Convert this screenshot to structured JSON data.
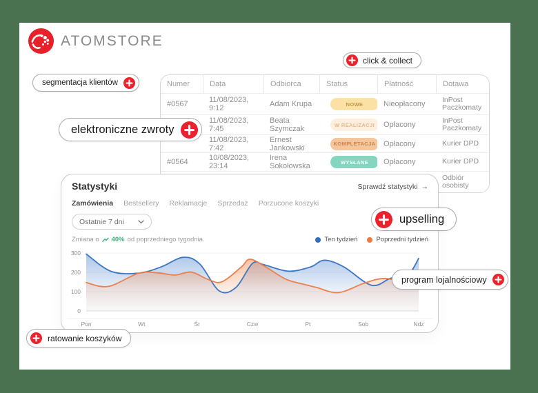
{
  "colors": {
    "frame": "#4a7150",
    "accent_red": "#e8232d",
    "change_green": "#3bb27a"
  },
  "logo": {
    "text": "ATOMSTORE"
  },
  "feature_pills": [
    {
      "label": "click & collect"
    },
    {
      "label": "segmentacja klientów"
    },
    {
      "label": "elektroniczne zwroty"
    },
    {
      "label": "upselling"
    },
    {
      "label": "program lojalnościowy"
    },
    {
      "label": "ratowanie koszyków"
    }
  ],
  "orders_table": {
    "columns": [
      "Numer",
      "Data",
      "Odbiorca",
      "Status",
      "Płatność",
      "Dotawa"
    ],
    "rows": [
      {
        "numer": "#0567",
        "data": "11/08/2023, 9:12",
        "odbiorca": "Adam Krupa",
        "status": "NOWE",
        "platnosc": "Nieopłacony",
        "dostawa": "InPost Paczkomaty"
      },
      {
        "numer": "",
        "data": "11/08/2023, 7:45",
        "odbiorca": "Beata Szymczak",
        "status": "W REALIZACJI",
        "platnosc": "Opłacony",
        "dostawa": "InPost Paczkomaty"
      },
      {
        "numer": "",
        "data": "11/08/2023, 7:42",
        "odbiorca": "Ernest Jankowski",
        "status": "KOMPLETACJA",
        "platnosc": "Opłacony",
        "dostawa": "Kurier DPD"
      },
      {
        "numer": "#0564",
        "data": "10/08/2023, 23:14",
        "odbiorca": "Irena Sokołowska",
        "status": "WYSŁANE",
        "platnosc": "Opłacony",
        "dostawa": "Kurier DPD"
      },
      {
        "numer": "",
        "data": "",
        "odbiorca": "",
        "status": "",
        "platnosc": "",
        "dostawa": "Odbiór osobisty"
      }
    ]
  },
  "stats_panel": {
    "title": "Statystyki",
    "link": "Sprawdź statystyki",
    "link_arrow": "→",
    "tabs": [
      {
        "label": "Zamówienia",
        "active": true
      },
      {
        "label": "Bestsellery",
        "active": false
      },
      {
        "label": "Reklamacje",
        "active": false
      },
      {
        "label": "Sprzedaż",
        "active": false
      },
      {
        "label": "Porzucone koszyki",
        "active": false
      }
    ],
    "range_select": "Ostatnie 7 dni",
    "change_prefix": "Zmiana o",
    "change_value": "40%",
    "change_suffix": "od poprzedniego tygodnia.",
    "legend": [
      {
        "label": "Ten tydzień",
        "color": "#2e6fbe"
      },
      {
        "label": "Poprzedni tydzień",
        "color": "#f07a3e"
      }
    ]
  },
  "chart_data": {
    "type": "area",
    "title": "",
    "xlabel": "",
    "ylabel": "",
    "categories": [
      "Pon",
      "Wt",
      "Śr",
      "Czw",
      "Pt",
      "Sob",
      "Ndz"
    ],
    "yticks": [
      0,
      100,
      200,
      300
    ],
    "ylim": [
      0,
      300
    ],
    "grid": true,
    "legend_position": "top-right",
    "series": [
      {
        "name": "Ten tydzień",
        "color": "#3b76c4",
        "fill": "#6a97d6",
        "points": [
          [
            0,
            295
          ],
          [
            0.45,
            205
          ],
          [
            0.95,
            196
          ],
          [
            1.35,
            228
          ],
          [
            1.75,
            278
          ],
          [
            2.05,
            243
          ],
          [
            2.4,
            104
          ],
          [
            2.7,
            121
          ],
          [
            3.0,
            246
          ],
          [
            3.2,
            240
          ],
          [
            3.65,
            206
          ],
          [
            4.05,
            228
          ],
          [
            4.3,
            263
          ],
          [
            4.65,
            228
          ],
          [
            5.15,
            133
          ],
          [
            5.5,
            170
          ],
          [
            5.8,
            183
          ],
          [
            6,
            272
          ]
        ]
      },
      {
        "name": "Poprzedni tydzień",
        "color": "#ec7f4b",
        "fill": "#f0935c",
        "points": [
          [
            0,
            147
          ],
          [
            0.4,
            127
          ],
          [
            0.95,
            196
          ],
          [
            1.3,
            197
          ],
          [
            1.6,
            186
          ],
          [
            1.9,
            201
          ],
          [
            2.2,
            163
          ],
          [
            2.45,
            151
          ],
          [
            2.8,
            228
          ],
          [
            2.95,
            268
          ],
          [
            3.2,
            235
          ],
          [
            3.6,
            165
          ],
          [
            3.9,
            140
          ],
          [
            4.15,
            122
          ],
          [
            4.55,
            95
          ],
          [
            5.0,
            142
          ],
          [
            5.35,
            168
          ],
          [
            5.7,
            151
          ],
          [
            6,
            113
          ]
        ]
      }
    ]
  }
}
